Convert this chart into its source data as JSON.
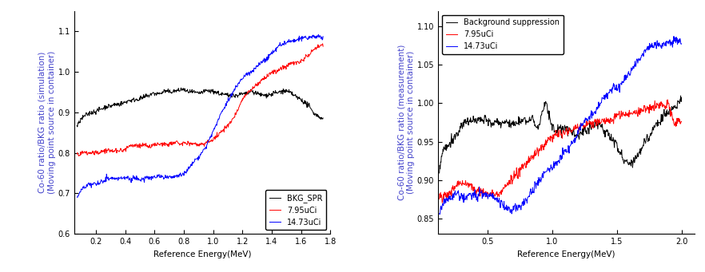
{
  "left": {
    "xlabel": "Reference Energy(MeV)",
    "ylabel": "Co-60 ratio/BKG ratio (simulation)\n(Moving point source in container)",
    "xlim": [
      0.05,
      1.8
    ],
    "ylim": [
      0.6,
      1.15
    ],
    "yticks": [
      0.6,
      0.7,
      0.8,
      0.9,
      1.0,
      1.1
    ],
    "xticks": [
      0.2,
      0.4,
      0.6,
      0.8,
      1.0,
      1.2,
      1.4,
      1.6,
      1.8
    ],
    "legend_labels": [
      "BKG_SPR",
      "7.95uCi",
      "14.73uCi"
    ],
    "colors": [
      "#000000",
      "#ff0000",
      "#0000ff"
    ],
    "series": {
      "black": {
        "segments": [
          [
            0.07,
            0.865
          ],
          [
            0.09,
            0.875
          ],
          [
            0.12,
            0.892
          ],
          [
            0.15,
            0.9
          ],
          [
            0.2,
            0.91
          ],
          [
            0.25,
            0.918
          ],
          [
            0.3,
            0.922
          ],
          [
            0.35,
            0.928
          ],
          [
            0.4,
            0.932
          ],
          [
            0.45,
            0.938
          ],
          [
            0.5,
            0.942
          ],
          [
            0.55,
            0.946
          ],
          [
            0.6,
            0.95
          ],
          [
            0.65,
            0.952
          ],
          [
            0.7,
            0.95
          ],
          [
            0.75,
            0.954
          ],
          [
            0.8,
            0.956
          ],
          [
            0.85,
            0.953
          ],
          [
            0.9,
            0.949
          ],
          [
            0.95,
            0.951
          ],
          [
            1.0,
            0.947
          ],
          [
            1.05,
            0.944
          ],
          [
            1.1,
            0.94
          ],
          [
            1.15,
            0.936
          ],
          [
            1.2,
            0.94
          ],
          [
            1.25,
            0.942
          ],
          [
            1.3,
            0.938
          ],
          [
            1.35,
            0.938
          ],
          [
            1.4,
            0.942
          ],
          [
            1.45,
            0.946
          ],
          [
            1.5,
            0.95
          ],
          [
            1.55,
            0.945
          ],
          [
            1.6,
            0.938
          ],
          [
            1.65,
            0.922
          ],
          [
            1.7,
            0.9
          ],
          [
            1.75,
            0.888
          ]
        ]
      },
      "red": {
        "segments": [
          [
            0.07,
            0.8
          ],
          [
            0.09,
            0.798
          ],
          [
            0.12,
            0.8
          ],
          [
            0.15,
            0.8
          ],
          [
            0.2,
            0.8
          ],
          [
            0.25,
            0.802
          ],
          [
            0.3,
            0.803
          ],
          [
            0.35,
            0.805
          ],
          [
            0.4,
            0.808
          ],
          [
            0.45,
            0.81
          ],
          [
            0.5,
            0.812
          ],
          [
            0.55,
            0.815
          ],
          [
            0.6,
            0.817
          ],
          [
            0.65,
            0.82
          ],
          [
            0.7,
            0.821
          ],
          [
            0.75,
            0.823
          ],
          [
            0.8,
            0.824
          ],
          [
            0.85,
            0.825
          ],
          [
            0.9,
            0.825
          ],
          [
            0.95,
            0.828
          ],
          [
            1.0,
            0.84
          ],
          [
            1.05,
            0.858
          ],
          [
            1.1,
            0.878
          ],
          [
            1.15,
            0.905
          ],
          [
            1.2,
            0.932
          ],
          [
            1.25,
            0.958
          ],
          [
            1.3,
            0.975
          ],
          [
            1.35,
            0.988
          ],
          [
            1.4,
            1.0
          ],
          [
            1.45,
            1.012
          ],
          [
            1.5,
            1.022
          ],
          [
            1.55,
            1.03
          ],
          [
            1.6,
            1.04
          ],
          [
            1.65,
            1.055
          ],
          [
            1.7,
            1.075
          ],
          [
            1.75,
            1.082
          ]
        ]
      },
      "blue": {
        "segments": [
          [
            0.07,
            0.69
          ],
          [
            0.09,
            0.705
          ],
          [
            0.12,
            0.715
          ],
          [
            0.15,
            0.718
          ],
          [
            0.2,
            0.72
          ],
          [
            0.25,
            0.722
          ],
          [
            0.3,
            0.724
          ],
          [
            0.35,
            0.723
          ],
          [
            0.4,
            0.725
          ],
          [
            0.45,
            0.726
          ],
          [
            0.5,
            0.727
          ],
          [
            0.55,
            0.729
          ],
          [
            0.6,
            0.731
          ],
          [
            0.65,
            0.732
          ],
          [
            0.7,
            0.731
          ],
          [
            0.75,
            0.732
          ],
          [
            0.8,
            0.734
          ],
          [
            0.85,
            0.748
          ],
          [
            0.9,
            0.768
          ],
          [
            0.95,
            0.792
          ],
          [
            1.0,
            0.828
          ],
          [
            1.05,
            0.868
          ],
          [
            1.1,
            0.908
          ],
          [
            1.15,
            0.938
          ],
          [
            1.2,
            0.96
          ],
          [
            1.25,
            0.978
          ],
          [
            1.3,
            0.992
          ],
          [
            1.35,
            1.008
          ],
          [
            1.4,
            1.028
          ],
          [
            1.45,
            1.048
          ],
          [
            1.5,
            1.058
          ],
          [
            1.55,
            1.062
          ],
          [
            1.6,
            1.065
          ],
          [
            1.65,
            1.068
          ],
          [
            1.7,
            1.065
          ],
          [
            1.75,
            1.063
          ]
        ]
      }
    }
  },
  "right": {
    "xlabel": "Reference Energy(MeV)",
    "ylabel": "Co-60 ratio/BKG ratio (measurement)\n(Moving point source in container)",
    "xlim": [
      0.12,
      2.1
    ],
    "ylim": [
      0.83,
      1.12
    ],
    "yticks": [
      0.85,
      0.9,
      0.95,
      1.0,
      1.05,
      1.1
    ],
    "xticks": [
      0.5,
      1.0,
      1.5,
      2.0
    ],
    "legend_labels": [
      "Background suppression",
      "7.95uCi",
      "14.73uCi"
    ],
    "colors": [
      "#000000",
      "#ff0000",
      "#0000ff"
    ],
    "series": {
      "black": {
        "segments": [
          [
            0.13,
            0.91
          ],
          [
            0.15,
            0.935
          ],
          [
            0.18,
            0.94
          ],
          [
            0.2,
            0.945
          ],
          [
            0.25,
            0.955
          ],
          [
            0.3,
            0.963
          ],
          [
            0.35,
            0.968
          ],
          [
            0.4,
            0.972
          ],
          [
            0.45,
            0.975
          ],
          [
            0.5,
            0.973
          ],
          [
            0.55,
            0.975
          ],
          [
            0.6,
            0.976
          ],
          [
            0.65,
            0.976
          ],
          [
            0.7,
            0.975
          ],
          [
            0.75,
            0.975
          ],
          [
            0.8,
            0.977
          ],
          [
            0.85,
            0.976
          ],
          [
            0.9,
            0.97
          ],
          [
            0.95,
            0.996
          ],
          [
            1.0,
            0.963
          ],
          [
            1.05,
            0.958
          ],
          [
            1.1,
            0.963
          ],
          [
            1.15,
            0.958
          ],
          [
            1.2,
            0.953
          ],
          [
            1.25,
            0.963
          ],
          [
            1.3,
            0.966
          ],
          [
            1.35,
            0.968
          ],
          [
            1.4,
            0.966
          ],
          [
            1.45,
            0.958
          ],
          [
            1.5,
            0.952
          ],
          [
            1.55,
            0.938
          ],
          [
            1.6,
            0.933
          ],
          [
            1.65,
            0.938
          ],
          [
            1.7,
            0.948
          ],
          [
            1.75,
            0.958
          ],
          [
            1.8,
            0.966
          ],
          [
            1.85,
            0.973
          ],
          [
            1.9,
            0.983
          ],
          [
            1.95,
            0.993
          ],
          [
            2.0,
            1.0
          ]
        ]
      },
      "red": {
        "segments": [
          [
            0.13,
            0.88
          ],
          [
            0.15,
            0.878
          ],
          [
            0.18,
            0.882
          ],
          [
            0.2,
            0.885
          ],
          [
            0.25,
            0.898
          ],
          [
            0.3,
            0.905
          ],
          [
            0.35,
            0.9
          ],
          [
            0.4,
            0.893
          ],
          [
            0.45,
            0.89
          ],
          [
            0.5,
            0.888
          ],
          [
            0.55,
            0.89
          ],
          [
            0.6,
            0.893
          ],
          [
            0.65,
            0.898
          ],
          [
            0.7,
            0.903
          ],
          [
            0.75,
            0.91
          ],
          [
            0.8,
            0.918
          ],
          [
            0.85,
            0.926
          ],
          [
            0.9,
            0.933
          ],
          [
            0.95,
            0.948
          ],
          [
            1.0,
            0.958
          ],
          [
            1.05,
            0.961
          ],
          [
            1.1,
            0.963
          ],
          [
            1.15,
            0.965
          ],
          [
            1.2,
            0.966
          ],
          [
            1.25,
            0.968
          ],
          [
            1.3,
            0.97
          ],
          [
            1.35,
            0.971
          ],
          [
            1.4,
            0.973
          ],
          [
            1.45,
            0.971
          ],
          [
            1.5,
            0.973
          ],
          [
            1.55,
            0.975
          ],
          [
            1.6,
            0.976
          ],
          [
            1.65,
            0.976
          ],
          [
            1.7,
            0.978
          ],
          [
            1.75,
            0.983
          ],
          [
            1.8,
            0.988
          ],
          [
            1.85,
            0.99
          ],
          [
            1.9,
            0.992
          ],
          [
            1.95,
            0.967
          ],
          [
            2.0,
            0.968
          ]
        ]
      },
      "blue": {
        "segments": [
          [
            0.13,
            0.854
          ],
          [
            0.15,
            0.866
          ],
          [
            0.18,
            0.87
          ],
          [
            0.2,
            0.873
          ],
          [
            0.25,
            0.874
          ],
          [
            0.3,
            0.876
          ],
          [
            0.35,
            0.875
          ],
          [
            0.4,
            0.875
          ],
          [
            0.45,
            0.874
          ],
          [
            0.5,
            0.87
          ],
          [
            0.55,
            0.868
          ],
          [
            0.6,
            0.862
          ],
          [
            0.65,
            0.858
          ],
          [
            0.7,
            0.853
          ],
          [
            0.75,
            0.856
          ],
          [
            0.8,
            0.86
          ],
          [
            0.85,
            0.868
          ],
          [
            0.9,
            0.88
          ],
          [
            0.95,
            0.892
          ],
          [
            1.0,
            0.904
          ],
          [
            1.05,
            0.916
          ],
          [
            1.1,
            0.928
          ],
          [
            1.15,
            0.939
          ],
          [
            1.2,
            0.95
          ],
          [
            1.25,
            0.96
          ],
          [
            1.3,
            0.97
          ],
          [
            1.35,
            0.978
          ],
          [
            1.4,
            0.986
          ],
          [
            1.45,
            0.993
          ],
          [
            1.5,
            0.999
          ],
          [
            1.55,
            1.008
          ],
          [
            1.6,
            1.018
          ],
          [
            1.65,
            1.028
          ],
          [
            1.7,
            1.038
          ],
          [
            1.75,
            1.048
          ],
          [
            1.8,
            1.055
          ],
          [
            1.85,
            1.058
          ],
          [
            1.9,
            1.062
          ],
          [
            1.95,
            1.065
          ],
          [
            2.0,
            1.068
          ]
        ]
      }
    }
  },
  "noise_seed": 42,
  "noise_amplitude": 0.006,
  "ylabel_color": "#4444cc",
  "axis_label_fontsize": 7.5,
  "tick_fontsize": 7,
  "legend_fontsize": 7
}
